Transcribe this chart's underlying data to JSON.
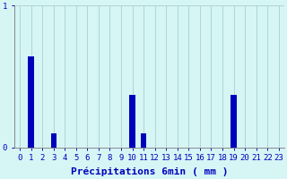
{
  "categories": [
    0,
    1,
    2,
    3,
    4,
    5,
    6,
    7,
    8,
    9,
    10,
    11,
    12,
    13,
    14,
    15,
    16,
    17,
    18,
    19,
    20,
    21,
    22,
    23
  ],
  "values": [
    0,
    0.64,
    0,
    0.1,
    0,
    0,
    0,
    0,
    0,
    0,
    0.37,
    0.1,
    0,
    0,
    0,
    0,
    0,
    0,
    0,
    0.37,
    0,
    0,
    0,
    0
  ],
  "bar_color": "#0000bb",
  "bg_color": "#d6f5f5",
  "grid_color": "#aacfcf",
  "axis_color": "#888888",
  "text_color": "#0000bb",
  "xlabel": "Précipitations 6min ( mm )",
  "ylim": [
    0,
    1.0
  ],
  "yticks": [
    0,
    1
  ],
  "bar_width": 0.5,
  "xlabel_fontsize": 8,
  "tick_fontsize": 6.5
}
